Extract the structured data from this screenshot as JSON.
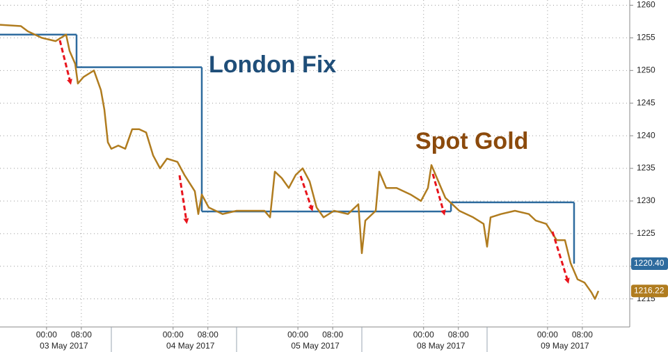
{
  "chart_data": {
    "type": "line",
    "annotations": [
      "London Fix",
      "Spot Gold"
    ],
    "ylim": [
      1210.7,
      1260.8
    ],
    "yticks": [
      1215,
      1220,
      1225,
      1230,
      1235,
      1240,
      1245,
      1250,
      1255,
      1260
    ],
    "xlim": [
      0,
      144.8
    ],
    "xticks": [
      {
        "value": 10.7,
        "label": "00:00"
      },
      {
        "value": 18.7,
        "label": "08:00"
      },
      {
        "value": 39.8,
        "label": "00:00"
      },
      {
        "value": 47.8,
        "label": "08:00"
      },
      {
        "value": 68.5,
        "label": "00:00"
      },
      {
        "value": 76.5,
        "label": "08:00"
      },
      {
        "value": 97.4,
        "label": "00:00"
      },
      {
        "value": 105.4,
        "label": "08:00"
      },
      {
        "value": 125.9,
        "label": "00:00"
      },
      {
        "value": 133.9,
        "label": "08:00"
      }
    ],
    "date_labels": [
      "03 May 2017",
      "04 May 2017",
      "05 May 2017",
      "08 May 2017",
      "09 May 2017"
    ],
    "grid": true,
    "series": [
      {
        "name": "London Fix",
        "color": "#2e6b9e",
        "step": true,
        "x": [
          0,
          17.6,
          46.4,
          103.7,
          132
        ],
        "values": [
          1255.5,
          1250.5,
          1228.4,
          1229.8,
          1220.4
        ],
        "badge": {
          "value": 1220.4,
          "label": "1220.40"
        }
      },
      {
        "name": "Spot Gold",
        "color": "#b07c1f",
        "x": [
          0,
          4.8,
          6.4,
          9.6,
          12.8,
          15.2,
          16,
          17.3,
          17.9,
          19.2,
          21.6,
          23.2,
          24,
          24.8,
          25.6,
          27.2,
          28.8,
          30.4,
          32,
          33.6,
          35.2,
          36.8,
          38.4,
          40.8,
          42.4,
          44.8,
          45.6,
          46.4,
          48,
          49.6,
          51.2,
          54.4,
          57.6,
          60.8,
          62.1,
          63.2,
          64.8,
          66.4,
          68,
          69.6,
          71.2,
          72.8,
          74.4,
          76.8,
          80,
          82.4,
          83.2,
          84,
          86.4,
          87.2,
          88.8,
          91.2,
          94.4,
          96.8,
          98.4,
          99.2,
          100.8,
          102.4,
          104,
          105.6,
          108.8,
          111.2,
          112,
          112.8,
          115.2,
          118.4,
          121.6,
          123.2,
          125.6,
          128,
          129.9,
          131.2,
          132.8,
          134.4,
          136,
          136.8,
          137.6
        ],
        "values": [
          1257,
          1256.8,
          1256,
          1255,
          1254.5,
          1255.5,
          1253,
          1251,
          1248,
          1249,
          1250,
          1247,
          1244,
          1239,
          1238,
          1238.5,
          1238,
          1241,
          1241,
          1240.5,
          1237,
          1235,
          1236.5,
          1236,
          1234,
          1231.5,
          1228,
          1231,
          1229,
          1228.5,
          1228,
          1228.5,
          1228.5,
          1228.5,
          1227.5,
          1234.5,
          1233.5,
          1232,
          1234,
          1235,
          1233,
          1229,
          1227.5,
          1228.5,
          1228,
          1229.5,
          1222,
          1227,
          1228.5,
          1234.5,
          1232,
          1232,
          1231,
          1230,
          1232,
          1235.5,
          1233,
          1230.5,
          1229.5,
          1228.5,
          1227.5,
          1226.5,
          1223,
          1227.5,
          1228,
          1228.5,
          1228,
          1227,
          1226.5,
          1224,
          1224,
          1220.5,
          1218,
          1217.5,
          1216,
          1215,
          1216.22
        ],
        "badge": {
          "value": 1216.22,
          "label": "1216.22"
        }
      }
    ]
  }
}
